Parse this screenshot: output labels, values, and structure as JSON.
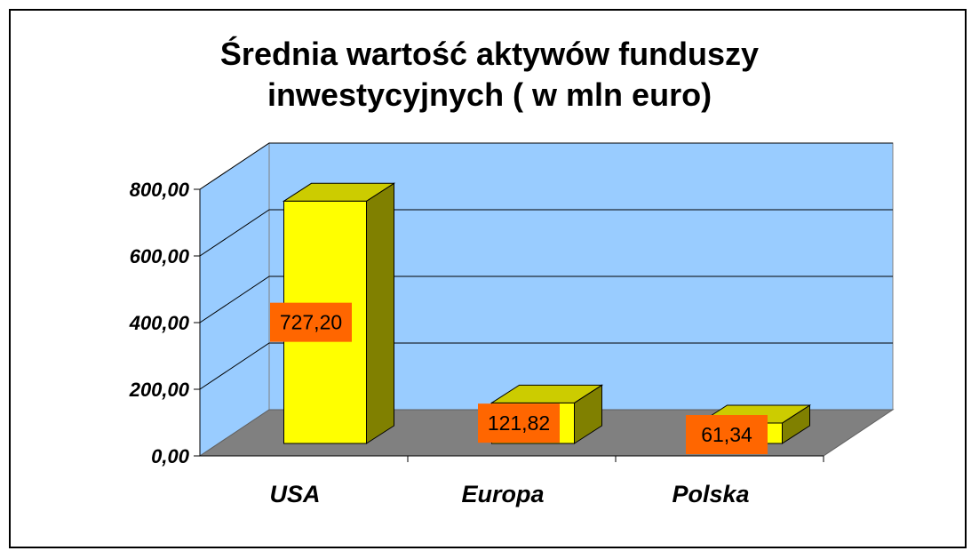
{
  "chart_data": {
    "type": "bar",
    "title": "Średnia wartość aktywów funduszy inwestycyjnych ( w mln euro)",
    "title_lines": [
      "Średnia wartość aktywów funduszy",
      "inwestycyjnych ( w mln euro)"
    ],
    "categories": [
      "USA",
      "Europa",
      "Polska"
    ],
    "values": [
      727.2,
      121.82,
      61.34
    ],
    "data_labels": [
      "727,20",
      "121,82",
      "61,34"
    ],
    "y_ticks": [
      "0,00",
      "200,00",
      "400,00",
      "600,00",
      "800,00"
    ],
    "y_tick_values": [
      0,
      200,
      400,
      600,
      800
    ],
    "ylim": [
      0,
      800
    ],
    "xlabel": "",
    "ylabel": "",
    "grid": true,
    "legend": false,
    "style": "3d-column",
    "colors": {
      "bar_front": "#FFFF00",
      "bar_side": "#808000",
      "bar_top": "#CCCC00",
      "back_wall": "#99CCFF",
      "side_wall": "#99CCFF",
      "floor": "#808080",
      "label_box": "#FF6600",
      "gridline": "#000000"
    }
  }
}
